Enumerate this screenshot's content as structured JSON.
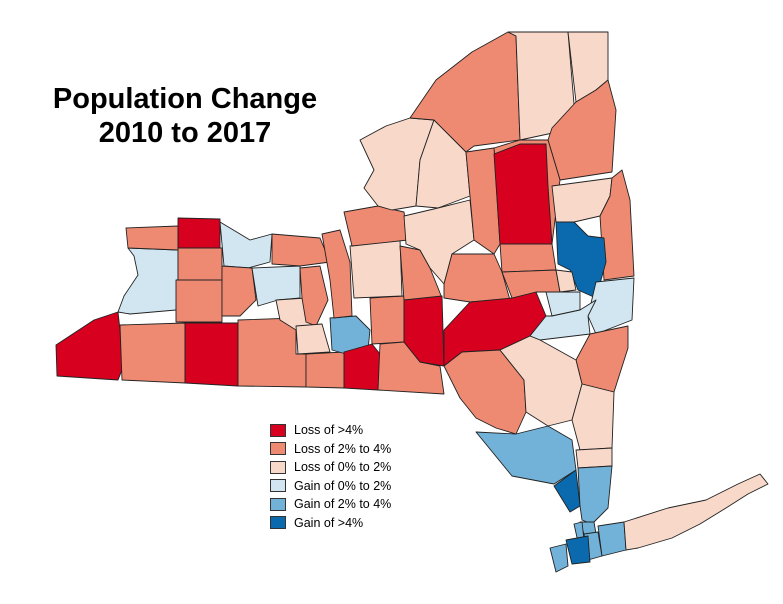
{
  "title": {
    "line1": "Population Change",
    "line2": "2010 to 2017"
  },
  "legend": [
    {
      "label": "Loss of >4%",
      "class": "loss_gt4",
      "color": "#d7001f"
    },
    {
      "label": "Loss of 2% to 4%",
      "class": "loss_2_4",
      "color": "#ee8a72"
    },
    {
      "label": "Loss of 0% to 2%",
      "class": "loss_0_2",
      "color": "#f8d8c9"
    },
    {
      "label": "Gain of 0% to 2%",
      "class": "gain_0_2",
      "color": "#d2e6f1"
    },
    {
      "label": "Gain of 2% to 4%",
      "class": "gain_2_4",
      "color": "#73b2d8"
    },
    {
      "label": "Gain of >4%",
      "class": "gain_gt4",
      "color": "#0a6aad"
    }
  ],
  "regions": [
    {
      "name": "chautauqua",
      "class": "loss_gt4"
    },
    {
      "name": "cattaraugus",
      "class": "loss_2_4"
    },
    {
      "name": "allegany",
      "class": "loss_gt4"
    },
    {
      "name": "steuben",
      "class": "loss_2_4"
    },
    {
      "name": "erie",
      "class": "gain_0_2"
    },
    {
      "name": "niagara",
      "class": "loss_2_4"
    },
    {
      "name": "orleans",
      "class": "loss_gt4"
    },
    {
      "name": "genesee",
      "class": "loss_2_4"
    },
    {
      "name": "wyoming",
      "class": "loss_2_4"
    },
    {
      "name": "monroe",
      "class": "gain_0_2"
    },
    {
      "name": "livingston",
      "class": "loss_2_4"
    },
    {
      "name": "ontario",
      "class": "gain_0_2"
    },
    {
      "name": "wayne",
      "class": "loss_2_4"
    },
    {
      "name": "yates",
      "class": "loss_0_2"
    },
    {
      "name": "seneca",
      "class": "loss_2_4"
    },
    {
      "name": "schuyler",
      "class": "loss_0_2"
    },
    {
      "name": "chemung",
      "class": "loss_2_4"
    },
    {
      "name": "tompkins",
      "class": "gain_2_4"
    },
    {
      "name": "tioga",
      "class": "loss_gt4"
    },
    {
      "name": "cayuga",
      "class": "loss_2_4"
    },
    {
      "name": "cortland",
      "class": "loss_2_4"
    },
    {
      "name": "broome",
      "class": "loss_2_4"
    },
    {
      "name": "onondaga",
      "class": "loss_0_2"
    },
    {
      "name": "oswego",
      "class": "loss_2_4"
    },
    {
      "name": "madison",
      "class": "loss_2_4"
    },
    {
      "name": "chenango",
      "class": "loss_gt4"
    },
    {
      "name": "jefferson",
      "class": "loss_0_2"
    },
    {
      "name": "lewis",
      "class": "loss_0_2"
    },
    {
      "name": "oneida",
      "class": "loss_0_2"
    },
    {
      "name": "st-lawrence",
      "class": "loss_2_4"
    },
    {
      "name": "franklin",
      "class": "loss_0_2"
    },
    {
      "name": "clinton",
      "class": "loss_0_2"
    },
    {
      "name": "essex",
      "class": "loss_2_4"
    },
    {
      "name": "hamilton",
      "class": "loss_2_4"
    },
    {
      "name": "herkimer",
      "class": "loss_2_4"
    },
    {
      "name": "fulton",
      "class": "loss_gt4"
    },
    {
      "name": "montgomery",
      "class": "loss_2_4"
    },
    {
      "name": "otsego",
      "class": "loss_2_4"
    },
    {
      "name": "delaware",
      "class": "loss_gt4"
    },
    {
      "name": "schoharie",
      "class": "loss_2_4"
    },
    {
      "name": "warren",
      "class": "loss_0_2"
    },
    {
      "name": "washington",
      "class": "loss_2_4"
    },
    {
      "name": "saratoga",
      "class": "gain_gt4"
    },
    {
      "name": "schenectady",
      "class": "loss_0_2"
    },
    {
      "name": "albany",
      "class": "gain_0_2"
    },
    {
      "name": "rensselaer",
      "class": "gain_0_2"
    },
    {
      "name": "greene",
      "class": "gain_0_2"
    },
    {
      "name": "columbia",
      "class": "loss_2_4"
    },
    {
      "name": "sullivan",
      "class": "loss_2_4"
    },
    {
      "name": "ulster",
      "class": "loss_0_2"
    },
    {
      "name": "dutchess",
      "class": "loss_0_2"
    },
    {
      "name": "orange",
      "class": "gain_2_4"
    },
    {
      "name": "putnam",
      "class": "loss_0_2"
    },
    {
      "name": "rockland",
      "class": "gain_gt4"
    },
    {
      "name": "westchester",
      "class": "gain_2_4"
    },
    {
      "name": "bronx",
      "class": "gain_2_4"
    },
    {
      "name": "new-york",
      "class": "gain_2_4"
    },
    {
      "name": "queens",
      "class": "gain_2_4"
    },
    {
      "name": "kings",
      "class": "gain_gt4"
    },
    {
      "name": "richmond",
      "class": "gain_2_4"
    },
    {
      "name": "nassau",
      "class": "gain_2_4"
    },
    {
      "name": "suffolk",
      "class": "loss_0_2"
    }
  ]
}
